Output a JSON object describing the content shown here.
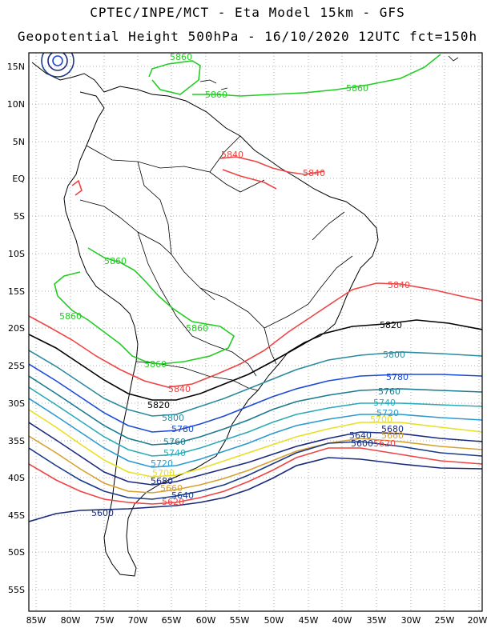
{
  "title": {
    "line1": "CPTEC/INPE/MCT -  Eta Model 15km - GFS",
    "line2": "Geopotential Height 500hPa - 16/10/2020 12UTC fct=150h"
  },
  "axes": {
    "lon_ticks": [
      "85W",
      "80W",
      "75W",
      "70W",
      "65W",
      "60W",
      "55W",
      "50W",
      "45W",
      "40W",
      "35W",
      "30W",
      "25W",
      "20W"
    ],
    "lat_ticks": [
      "15N",
      "10N",
      "5N",
      "EQ",
      "5S",
      "10S",
      "15S",
      "20S",
      "25S",
      "30S",
      "35S",
      "40S",
      "45S",
      "50S",
      "55S"
    ],
    "lon_range": [
      -86,
      -19.5
    ],
    "lat_range": [
      17,
      -58.5
    ],
    "grid": true
  },
  "map": {
    "region": "South America",
    "field": "500 hPa geopotential height",
    "units": "gpm",
    "contour_interval": 20
  },
  "contours": [
    {
      "value": "5860",
      "color": "#22cc22",
      "labels": [
        "5860",
        "5860",
        "5860",
        "5860",
        "5860",
        "5860",
        "5860"
      ]
    },
    {
      "value": "5840",
      "color": "#ee4444",
      "labels": [
        "5840",
        "5840",
        "5840",
        "5840"
      ]
    },
    {
      "value": "5820",
      "color": "#000000",
      "labels": [
        "5820",
        "5820"
      ]
    },
    {
      "value": "5800",
      "color": "#2a8aa0",
      "labels": [
        "5800",
        "5800"
      ]
    },
    {
      "value": "5780",
      "color": "#1a4ad8",
      "labels": [
        "5780",
        "5780"
      ]
    },
    {
      "value": "5760",
      "color": "#1a7a90",
      "labels": [
        "5760",
        "5760"
      ]
    },
    {
      "value": "5740",
      "color": "#2aaab8",
      "labels": [
        "5740",
        "5740"
      ]
    },
    {
      "value": "5720",
      "color": "#2a9ad0",
      "labels": [
        "5720",
        "5720"
      ]
    },
    {
      "value": "5700",
      "color": "#e8e020",
      "labels": [
        "5700",
        "5700"
      ]
    },
    {
      "value": "5680",
      "color": "#1a2a80",
      "labels": [
        "5680",
        "5680"
      ]
    },
    {
      "value": "5660",
      "color": "#d8a030",
      "labels": [
        "5660",
        "5660"
      ]
    },
    {
      "value": "5640",
      "color": "#1a3a8a",
      "labels": [
        "5640",
        "5640"
      ]
    },
    {
      "value": "5620",
      "color": "#ee4444",
      "labels": [
        "5620",
        "5620"
      ]
    },
    {
      "value": "5600",
      "color": "#1a2a7a",
      "labels": [
        "5600",
        "5600"
      ]
    }
  ]
}
